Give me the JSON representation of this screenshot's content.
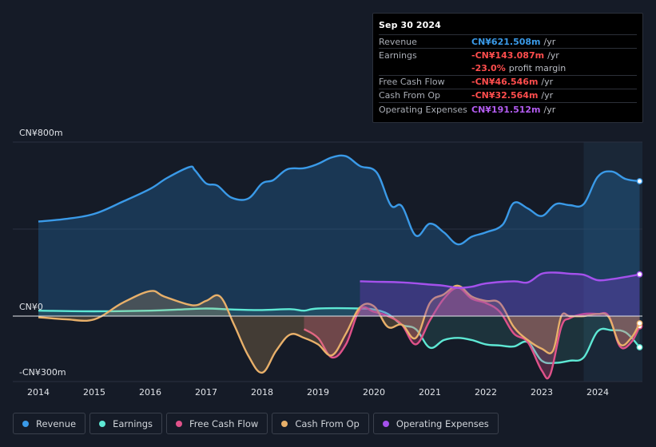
{
  "tooltip": {
    "date": "Sep 30 2024",
    "rows": [
      {
        "label": "Revenue",
        "value": "CN¥621.508m",
        "unit": "/yr",
        "color": "#3a9ae8"
      },
      {
        "label": "Earnings",
        "value": "-CN¥143.087m",
        "unit": "/yr",
        "color": "#ff4d4d"
      },
      {
        "label": "",
        "value": "-23.0%",
        "unit": "profit margin",
        "color": "#ff4d4d"
      },
      {
        "label": "Free Cash Flow",
        "value": "-CN¥46.546m",
        "unit": "/yr",
        "color": "#ff4d4d"
      },
      {
        "label": "Cash From Op",
        "value": "-CN¥32.564m",
        "unit": "/yr",
        "color": "#ff4d4d"
      },
      {
        "label": "Operating Expenses",
        "value": "CN¥191.512m",
        "unit": "/yr",
        "color": "#b25cf0"
      }
    ]
  },
  "legend": [
    {
      "label": "Revenue",
      "color": "#3a9ae8"
    },
    {
      "label": "Earnings",
      "color": "#5ee8d4"
    },
    {
      "label": "Free Cash Flow",
      "color": "#e0528a"
    },
    {
      "label": "Cash From Op",
      "color": "#e8b06a"
    },
    {
      "label": "Operating Expenses",
      "color": "#a451ec"
    }
  ],
  "chart_data": {
    "type": "line",
    "title": "",
    "ylabel": "",
    "xlabel": "",
    "ylim": [
      -300,
      800
    ],
    "y_tick_labels": [
      "CN¥800m",
      "CN¥0",
      "-CN¥300m"
    ],
    "x_tick_labels": [
      "2014",
      "2015",
      "2016",
      "2017",
      "2018",
      "2019",
      "2020",
      "2021",
      "2022",
      "2023",
      "2024"
    ],
    "xlim": [
      2014.0,
      2024.8
    ],
    "series": [
      {
        "name": "Revenue",
        "color": "#3a9ae8",
        "x": [
          2014.0,
          2014.5,
          2015.0,
          2015.5,
          2016.0,
          2016.3,
          2016.7,
          2016.8,
          2017.0,
          2017.2,
          2017.45,
          2017.75,
          2018.0,
          2018.2,
          2018.45,
          2018.75,
          2019.0,
          2019.25,
          2019.5,
          2019.75,
          2020.05,
          2020.3,
          2020.5,
          2020.75,
          2021.0,
          2021.25,
          2021.5,
          2021.75,
          2022.0,
          2022.3,
          2022.5,
          2022.75,
          2023.0,
          2023.25,
          2023.5,
          2023.75,
          2024.0,
          2024.25,
          2024.5,
          2024.75
        ],
        "values": [
          435,
          447,
          470,
          525,
          585,
          635,
          685,
          670,
          610,
          600,
          545,
          540,
          610,
          625,
          675,
          680,
          700,
          730,
          735,
          690,
          660,
          510,
          505,
          370,
          425,
          385,
          330,
          365,
          385,
          420,
          520,
          495,
          460,
          515,
          510,
          515,
          640,
          665,
          630,
          620
        ]
      },
      {
        "name": "Earnings",
        "color": "#5ee8d4",
        "x": [
          2014.0,
          2015.0,
          2016.0,
          2016.5,
          2017.0,
          2017.5,
          2018.0,
          2018.5,
          2018.75,
          2019.0,
          2019.75,
          2020.0,
          2020.25,
          2020.5,
          2020.75,
          2021.0,
          2021.25,
          2021.5,
          2021.75,
          2022.0,
          2022.25,
          2022.5,
          2022.75,
          2023.0,
          2023.25,
          2023.5,
          2023.75,
          2024.0,
          2024.25,
          2024.5,
          2024.75
        ],
        "values": [
          25,
          22,
          25,
          30,
          35,
          30,
          28,
          32,
          25,
          35,
          35,
          30,
          10,
          -40,
          -60,
          -145,
          -110,
          -100,
          -110,
          -130,
          -135,
          -140,
          -120,
          -205,
          -215,
          -205,
          -190,
          -70,
          -65,
          -75,
          -143
        ]
      },
      {
        "name": "Free Cash Flow",
        "color": "#e0528a",
        "x": [
          2018.75,
          2019.0,
          2019.25,
          2019.5,
          2019.75,
          2020.0,
          2020.25,
          2020.5,
          2020.75,
          2021.0,
          2021.25,
          2021.5,
          2021.75,
          2022.0,
          2022.25,
          2022.5,
          2022.75,
          2023.0,
          2023.15,
          2023.35,
          2023.5,
          2023.75,
          2024.0,
          2024.2,
          2024.4,
          2024.6,
          2024.75
        ],
        "values": [
          -60,
          -100,
          -190,
          -130,
          30,
          20,
          0,
          -40,
          -130,
          -20,
          80,
          130,
          80,
          60,
          20,
          -80,
          -120,
          -250,
          -270,
          -50,
          -10,
          10,
          10,
          0,
          -140,
          -120,
          -47
        ]
      },
      {
        "name": "Cash From Op",
        "color": "#e8b06a",
        "x": [
          2014.0,
          2014.5,
          2015.0,
          2015.5,
          2016.0,
          2016.25,
          2016.75,
          2017.0,
          2017.25,
          2017.5,
          2017.75,
          2018.0,
          2018.25,
          2018.5,
          2018.75,
          2019.0,
          2019.25,
          2019.5,
          2019.75,
          2020.0,
          2020.25,
          2020.5,
          2020.75,
          2021.0,
          2021.25,
          2021.5,
          2021.75,
          2022.0,
          2022.25,
          2022.5,
          2022.75,
          2023.0,
          2023.2,
          2023.35,
          2023.5,
          2023.75,
          2024.0,
          2024.2,
          2024.4,
          2024.6,
          2024.75
        ],
        "values": [
          -5,
          -15,
          -15,
          60,
          115,
          90,
          50,
          70,
          90,
          -40,
          -180,
          -260,
          -160,
          -85,
          -100,
          -130,
          -180,
          -80,
          40,
          45,
          -50,
          -40,
          -100,
          60,
          100,
          140,
          90,
          70,
          60,
          -50,
          -110,
          -150,
          -160,
          0,
          0,
          0,
          10,
          -5,
          -130,
          -100,
          -33
        ]
      },
      {
        "name": "Operating Expenses",
        "color": "#a451ec",
        "x": [
          2019.75,
          2020.0,
          2020.5,
          2021.0,
          2021.25,
          2021.5,
          2021.75,
          2022.0,
          2022.5,
          2022.75,
          2023.0,
          2023.25,
          2023.5,
          2023.75,
          2024.0,
          2024.25,
          2024.5,
          2024.75
        ],
        "values": [
          160,
          158,
          155,
          145,
          140,
          130,
          135,
          150,
          160,
          155,
          195,
          200,
          195,
          190,
          165,
          170,
          180,
          192
        ]
      }
    ]
  }
}
